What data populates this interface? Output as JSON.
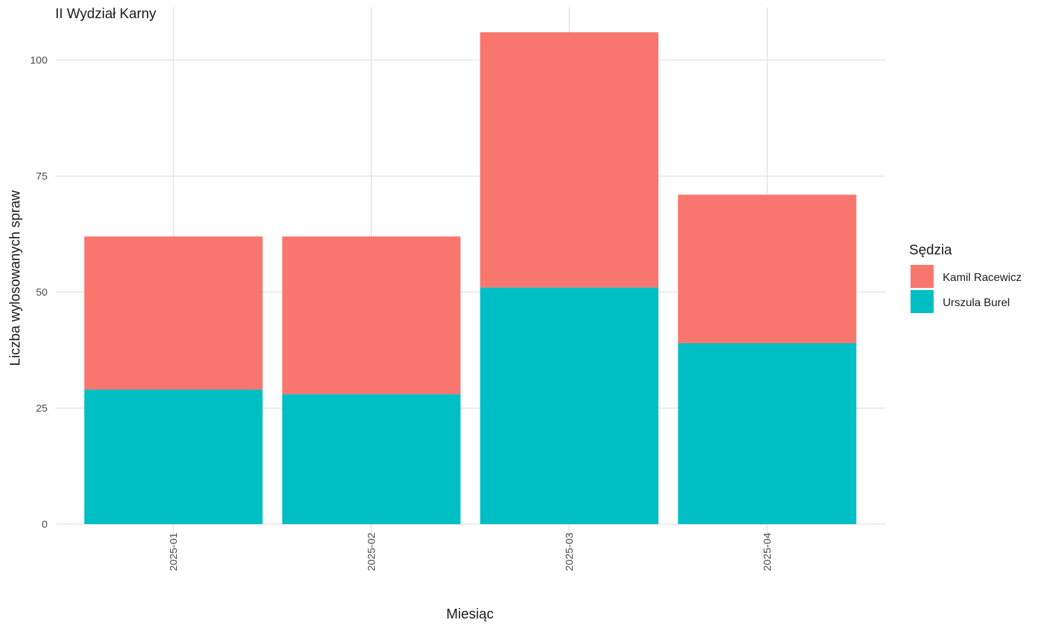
{
  "chart_data": {
    "type": "bar",
    "stacked": true,
    "title": "II Wydział Karny",
    "xlabel": "Miesiąc",
    "ylabel": "Liczba wylosowanych spraw",
    "categories": [
      "2025-01",
      "2025-02",
      "2025-03",
      "2025-04"
    ],
    "series": [
      {
        "name": "Urszula Burel",
        "values": [
          29,
          28,
          51,
          39
        ],
        "color": "#00BFC4"
      },
      {
        "name": "Kamil Racewicz",
        "values": [
          33,
          34,
          55,
          32
        ],
        "color": "#F8766D"
      }
    ],
    "ylim": [
      0,
      106
    ],
    "yticks": [
      0,
      25,
      50,
      75,
      100
    ],
    "grid": true,
    "legend": {
      "title": "Sędzia",
      "position": "right",
      "entries": [
        "Kamil Racewicz",
        "Urszula Burel"
      ]
    }
  }
}
